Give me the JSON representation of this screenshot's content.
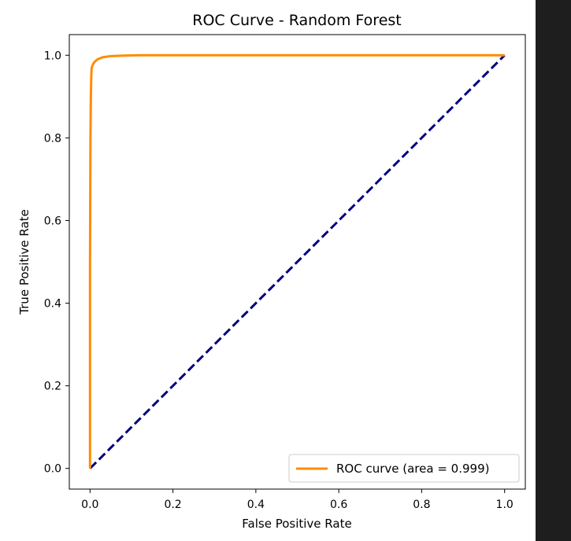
{
  "chart_data": {
    "type": "line",
    "title": "ROC Curve - Random Forest",
    "xlabel": "False Positive Rate",
    "ylabel": "True Positive Rate",
    "xlim": [
      -0.05,
      1.05
    ],
    "ylim": [
      -0.05,
      1.05
    ],
    "grid": false,
    "legend_position": "lower-right",
    "x_ticks": [
      "0.0",
      "0.2",
      "0.4",
      "0.6",
      "0.8",
      "1.0"
    ],
    "y_ticks": [
      "0.0",
      "0.2",
      "0.4",
      "0.6",
      "0.8",
      "1.0"
    ],
    "series": [
      {
        "name": "ROC curve (area = 0.999)",
        "color": "#ff8c00",
        "style": "solid",
        "x": [
          0.0,
          0.0,
          0.001,
          0.002,
          0.003,
          0.004,
          0.006,
          0.008,
          0.012,
          0.018,
          0.03,
          0.05,
          0.08,
          0.12,
          0.3,
          1.0
        ],
        "y": [
          0.0,
          0.5,
          0.8,
          0.9,
          0.95,
          0.97,
          0.975,
          0.98,
          0.985,
          0.99,
          0.995,
          0.998,
          0.999,
          1.0,
          1.0,
          1.0
        ]
      },
      {
        "color": "#000080",
        "style": "dashed",
        "x": [
          0.0,
          1.0
        ],
        "y": [
          0.0,
          1.0
        ]
      }
    ]
  }
}
